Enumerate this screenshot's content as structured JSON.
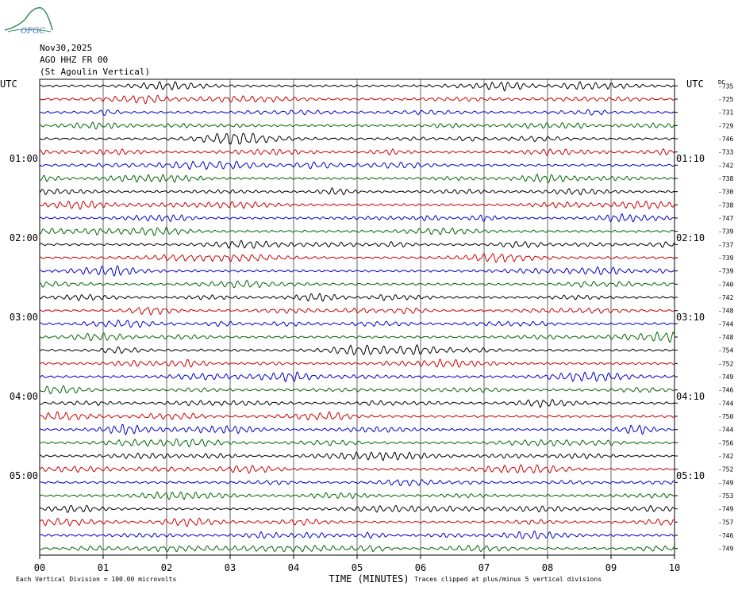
{
  "header": {
    "logo_text": "OFGC",
    "date": "Nov30,2025",
    "station": "AGO HHZ FR 00",
    "station_name": "(St Agoulin Vertical)"
  },
  "colors": {
    "trace_colors": [
      "#000000",
      "#cc0000",
      "#0000cc",
      "#006600"
    ],
    "grid": "#000000",
    "logo": "#2e8b57"
  },
  "chart_data": {
    "type": "line",
    "title": "",
    "xlabel": "TIME (MINUTES)",
    "ylabel": "",
    "xlim": [
      0,
      10
    ],
    "x_ticks": [
      "00",
      "01",
      "02",
      "03",
      "04",
      "05",
      "06",
      "07",
      "08",
      "09",
      "10"
    ],
    "left_axis_title": "UTC",
    "right_axis_title": "UTC",
    "dc_label": "DC",
    "left_time_labels": [
      {
        "row": 6,
        "label": "01:00"
      },
      {
        "row": 12,
        "label": "02:00"
      },
      {
        "row": 18,
        "label": "03:00"
      },
      {
        "row": 24,
        "label": "04:00"
      },
      {
        "row": 30,
        "label": "05:00"
      }
    ],
    "right_time_labels": [
      {
        "row": 6,
        "label": "01:10"
      },
      {
        "row": 12,
        "label": "02:10"
      },
      {
        "row": 18,
        "label": "03:10"
      },
      {
        "row": 24,
        "label": "04:10"
      },
      {
        "row": 30,
        "label": "05:10"
      }
    ],
    "dc_offsets": [
      "-735",
      "-725",
      "-731",
      "-729",
      "-746",
      "-733",
      "-742",
      "-738",
      "-730",
      "-738",
      "-747",
      "-739",
      "-737",
      "-739",
      "-739",
      "-740",
      "-742",
      "-748",
      "-744",
      "-748",
      "-754",
      "-752",
      "-749",
      "-746",
      "-744",
      "-750",
      "-744",
      "-756",
      "-742",
      "-752",
      "-749",
      "-753",
      "-749",
      "-757",
      "-746",
      "-749"
    ],
    "scale_note": "Each Vertical Division =  100.00 microvolts",
    "clip_note": "Traces clipped at plus/minus 5 vertical divisions",
    "rows": 36,
    "minutes_per_row": 10,
    "grid": true
  }
}
